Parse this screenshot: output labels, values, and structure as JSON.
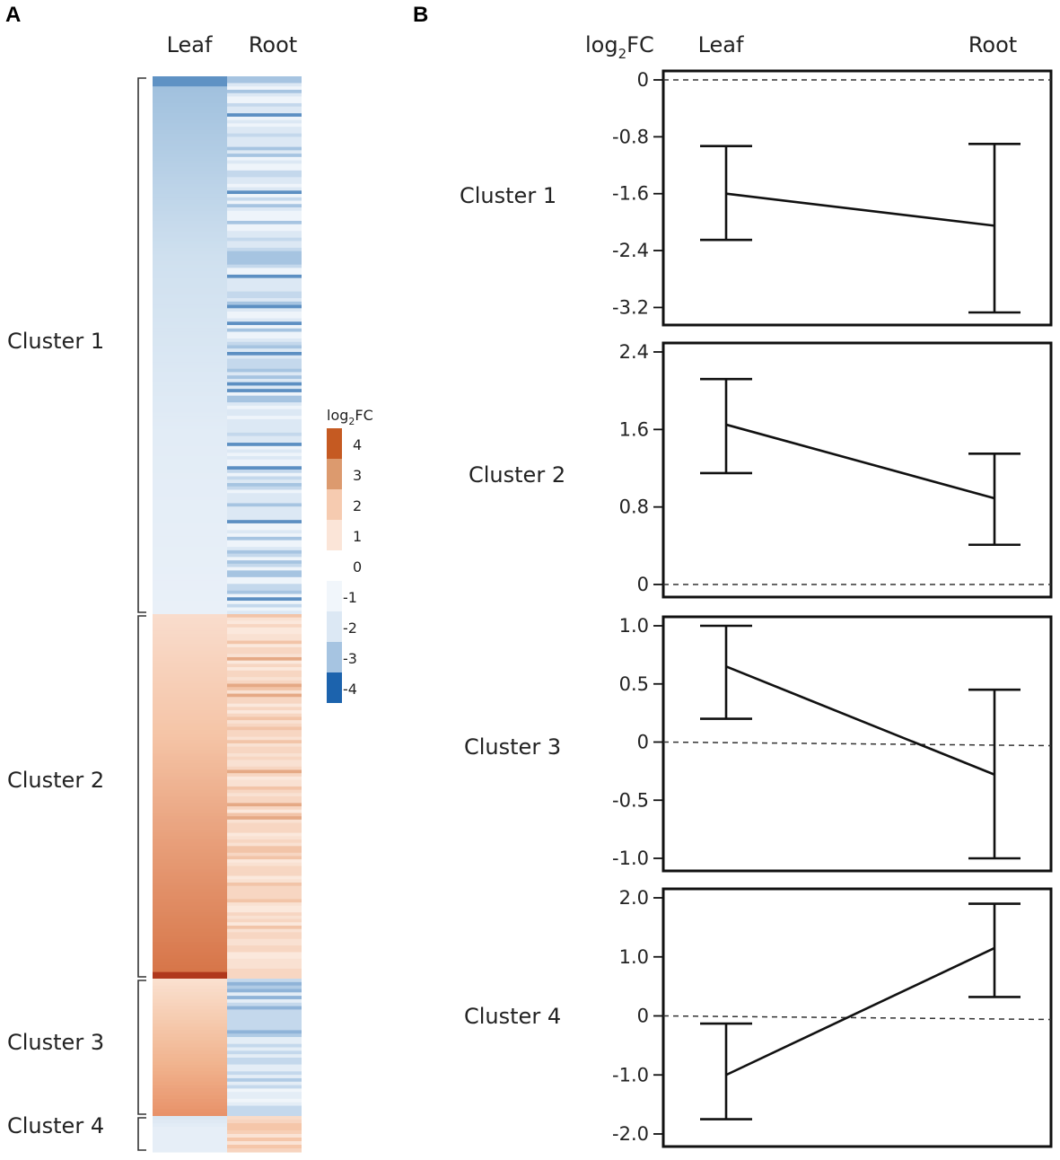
{
  "panel_a": {
    "letter": "A",
    "columns": [
      "Leaf",
      "Root"
    ],
    "clusters": [
      {
        "label": "Cluster 1",
        "rows": 160
      },
      {
        "label": "Cluster 2",
        "rows": 110
      },
      {
        "label": "Cluster 3",
        "rows": 40
      },
      {
        "label": "Cluster 4",
        "rows": 10
      }
    ],
    "legend": {
      "title_main": "log",
      "title_sub": "2",
      "title_end": "FC",
      "ticks": [
        "4",
        "3",
        "2",
        "1",
        "0",
        "-1",
        "-2",
        "-3",
        "-4"
      ],
      "colors": [
        "#c55a22",
        "#dc9a6e",
        "#f6cbb0",
        "#fbe5d8",
        "#ffffff",
        "#f1f6fb",
        "#dce8f4",
        "#a6c4e1",
        "#1c63ad"
      ]
    }
  },
  "panel_b": {
    "letter": "B",
    "ylabel_main": "log",
    "ylabel_sub": "2",
    "ylabel_end": "FC",
    "xlabels": [
      "Leaf",
      "Root"
    ]
  },
  "chart_data": [
    {
      "type": "line",
      "title": "Cluster 1",
      "categories": [
        "Leaf",
        "Root"
      ],
      "values": [
        -1.6,
        -2.05
      ],
      "error_low": [
        -2.25,
        -3.27
      ],
      "error_high": [
        -0.93,
        -0.9
      ],
      "ylim": [
        -3.27,
        0.0
      ],
      "yticks": [
        "0",
        "-0.8",
        "-1.6",
        "-2.4",
        "-3.2"
      ],
      "ytick_values": [
        0,
        -0.8,
        -1.6,
        -2.4,
        -3.2
      ],
      "reference_line": 0
    },
    {
      "type": "line",
      "title": "Cluster 2",
      "categories": [
        "Leaf",
        "Root"
      ],
      "values": [
        1.65,
        0.89
      ],
      "error_low": [
        1.15,
        0.41
      ],
      "error_high": [
        2.12,
        1.35
      ],
      "ylim": [
        0.0,
        2.4
      ],
      "yticks": [
        "2.4",
        "1.6",
        "0.8",
        "0"
      ],
      "ytick_values": [
        2.4,
        1.6,
        0.8,
        0
      ],
      "reference_line": 0
    },
    {
      "type": "line",
      "title": "Cluster 3",
      "categories": [
        "Leaf",
        "Root"
      ],
      "values": [
        0.65,
        -0.28
      ],
      "error_low": [
        0.2,
        -1.0
      ],
      "error_high": [
        1.0,
        0.45
      ],
      "ylim": [
        -1.0,
        1.0
      ],
      "yticks": [
        "1.0",
        "0.5",
        "0",
        "-0.5",
        "-1.0"
      ],
      "ytick_values": [
        1.0,
        0.5,
        0,
        -0.5,
        -1.0
      ],
      "reference_line": 0
    },
    {
      "type": "line",
      "title": "Cluster 4",
      "categories": [
        "Leaf",
        "Root"
      ],
      "values": [
        -1.0,
        1.15
      ],
      "error_low": [
        -1.75,
        0.32
      ],
      "error_high": [
        -0.13,
        1.9
      ],
      "ylim": [
        -2.0,
        2.0
      ],
      "yticks": [
        "2.0",
        "1.0",
        "0",
        "-1.0",
        "-2.0"
      ],
      "ytick_values": [
        2.0,
        1.0,
        0,
        -1.0,
        -2.0
      ],
      "reference_line": 0
    }
  ]
}
